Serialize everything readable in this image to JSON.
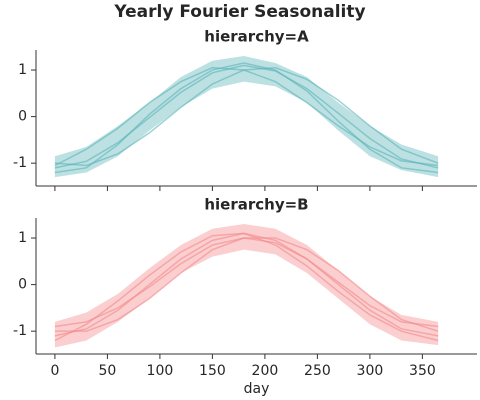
{
  "title": "Yearly Fourier Seasonality",
  "chart_data": [
    {
      "type": "line",
      "title": "hierarchy=A",
      "show_xtick_labels": false,
      "x": [
        0,
        30,
        60,
        90,
        120,
        150,
        180,
        210,
        240,
        270,
        300,
        330,
        365
      ],
      "xlim": [
        -18,
        402
      ],
      "ylim": [
        -1.49,
        1.43
      ],
      "xticks": [
        0,
        50,
        100,
        150,
        200,
        250,
        300,
        350
      ],
      "yticks": [
        -1,
        0,
        1
      ],
      "band": {
        "color": "#5ab4b8",
        "lower": [
          -1.3,
          -1.2,
          -0.85,
          -0.3,
          0.2,
          0.6,
          0.75,
          0.65,
          0.3,
          -0.3,
          -0.85,
          -1.15,
          -1.3
        ],
        "upper": [
          -0.85,
          -0.65,
          -0.2,
          0.3,
          0.85,
          1.2,
          1.3,
          1.15,
          0.85,
          0.3,
          -0.2,
          -0.6,
          -0.85
        ]
      },
      "series": [
        {
          "color": "#5ab4b8",
          "values": [
            -1.1,
            -0.96,
            -0.56,
            -0.02,
            0.52,
            0.94,
            1.1,
            0.98,
            0.6,
            0.07,
            -0.47,
            -0.91,
            -1.1
          ]
        },
        {
          "color": "#5ab4b8",
          "values": [
            -1.0,
            -1.05,
            -0.8,
            -0.35,
            0.2,
            0.7,
            1.0,
            1.05,
            0.8,
            0.35,
            -0.2,
            -0.7,
            -1.0
          ]
        },
        {
          "color": "#5ab4b8",
          "values": [
            -1.05,
            -0.7,
            -0.25,
            0.3,
            0.75,
            1.05,
            1.0,
            0.75,
            0.3,
            -0.2,
            -0.65,
            -0.95,
            -1.05
          ]
        },
        {
          "color": "#5ab4b8",
          "values": [
            -1.2,
            -1.1,
            -0.6,
            0.05,
            0.6,
            1.0,
            1.15,
            1.0,
            0.55,
            -0.1,
            -0.7,
            -1.1,
            -1.2
          ]
        }
      ]
    },
    {
      "type": "line",
      "title": "hierarchy=B",
      "xlabel": "day",
      "show_xtick_labels": true,
      "x": [
        0,
        30,
        60,
        90,
        120,
        150,
        180,
        210,
        240,
        270,
        300,
        330,
        365
      ],
      "xlim": [
        -18,
        402
      ],
      "ylim": [
        -1.49,
        1.43
      ],
      "xticks": [
        0,
        50,
        100,
        150,
        200,
        250,
        300,
        350
      ],
      "yticks": [
        -1,
        0,
        1
      ],
      "band": {
        "color": "#f4888a",
        "lower": [
          -1.35,
          -1.2,
          -0.8,
          -0.3,
          0.25,
          0.6,
          0.75,
          0.65,
          0.25,
          -0.3,
          -0.85,
          -1.2,
          -1.3
        ],
        "upper": [
          -0.8,
          -0.6,
          -0.2,
          0.35,
          0.85,
          1.2,
          1.3,
          1.2,
          0.85,
          0.3,
          -0.25,
          -0.65,
          -0.8
        ]
      },
      "series": [
        {
          "color": "#f4888a",
          "values": [
            -0.9,
            -0.8,
            -0.5,
            -0.05,
            0.45,
            0.85,
            1.0,
            0.9,
            0.55,
            0.05,
            -0.45,
            -0.8,
            -0.9
          ]
        },
        {
          "color": "#f4888a",
          "values": [
            -1.1,
            -0.95,
            -0.55,
            0.0,
            0.55,
            0.95,
            1.1,
            0.95,
            0.55,
            0.0,
            -0.55,
            -0.95,
            -1.1
          ]
        },
        {
          "color": "#f4888a",
          "values": [
            -1.0,
            -1.0,
            -0.75,
            -0.3,
            0.25,
            0.75,
            1.0,
            1.0,
            0.75,
            0.3,
            -0.25,
            -0.75,
            -1.0
          ]
        },
        {
          "color": "#f4888a",
          "values": [
            -1.2,
            -0.85,
            -0.35,
            0.2,
            0.7,
            1.05,
            1.1,
            0.85,
            0.4,
            -0.15,
            -0.65,
            -1.0,
            -1.2
          ]
        }
      ]
    }
  ]
}
